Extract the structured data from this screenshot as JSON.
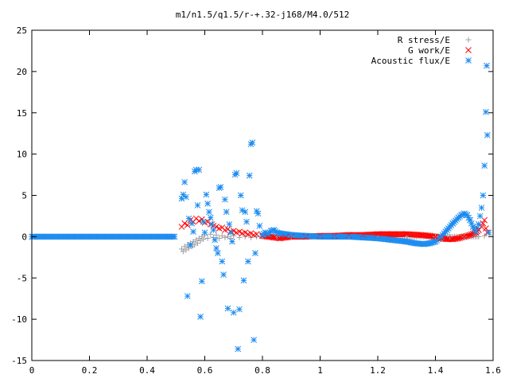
{
  "chart_data": {
    "type": "scatter",
    "title": "m1/n1.5/q1.5/r-+.32-j168/M4.0/512",
    "xlabel": "",
    "ylabel": "",
    "xlim": [
      0,
      1.6
    ],
    "ylim": [
      -15,
      25
    ],
    "x_ticks": [
      "0",
      "0.2",
      "0.4",
      "0.6",
      "0.8",
      "1",
      "1.2",
      "1.4",
      "1.6"
    ],
    "y_ticks": [
      "25",
      "20",
      "15",
      "10",
      "5",
      "0",
      "-5",
      "-10",
      "-15"
    ],
    "grid": false,
    "legend_position": "top-right",
    "series": [
      {
        "name": "R stress/E",
        "marker": "plus",
        "color": "#a0a0a4",
        "points": [
          [
            0.52,
            -1.5
          ],
          [
            0.525,
            -1.8
          ],
          [
            0.53,
            -1.2
          ],
          [
            0.535,
            -1.6
          ],
          [
            0.54,
            -1.0
          ],
          [
            0.545,
            -1.4
          ],
          [
            0.55,
            -0.8
          ],
          [
            0.555,
            -1.2
          ],
          [
            0.56,
            -0.6
          ],
          [
            0.565,
            -1.0
          ],
          [
            0.57,
            -0.4
          ],
          [
            0.575,
            -0.8
          ],
          [
            0.58,
            -0.2
          ],
          [
            0.585,
            -0.5
          ],
          [
            0.59,
            0.0
          ],
          [
            0.595,
            -0.3
          ],
          [
            0.6,
            0.2
          ],
          [
            0.61,
            -0.2
          ],
          [
            0.62,
            0.3
          ],
          [
            0.63,
            -0.1
          ],
          [
            0.64,
            0.2
          ],
          [
            0.65,
            -0.2
          ],
          [
            0.66,
            0.1
          ],
          [
            0.67,
            -0.1
          ],
          [
            0.68,
            0.0
          ],
          [
            0.69,
            -0.2
          ],
          [
            0.7,
            0.1
          ],
          [
            0.72,
            -0.1
          ],
          [
            0.74,
            0.0
          ],
          [
            0.76,
            -0.1
          ],
          [
            0.78,
            0.0
          ],
          [
            0.8,
            0.0
          ],
          [
            0.85,
            0.0
          ],
          [
            0.9,
            0.0
          ],
          [
            1.0,
            0.0
          ],
          [
            1.1,
            0.0
          ],
          [
            1.2,
            0.0
          ],
          [
            1.3,
            0.0
          ],
          [
            1.4,
            0.0
          ],
          [
            1.45,
            0.0
          ],
          [
            1.5,
            0.0
          ],
          [
            1.55,
            0.0
          ],
          [
            1.57,
            0.1
          ]
        ]
      },
      {
        "name": "G work/E",
        "marker": "cross",
        "color": "#ff0000",
        "points": [
          [
            0.52,
            1.2
          ],
          [
            0.53,
            1.6
          ],
          [
            0.54,
            1.4
          ],
          [
            0.55,
            2.0
          ],
          [
            0.56,
            1.8
          ],
          [
            0.57,
            2.2
          ],
          [
            0.58,
            1.9
          ],
          [
            0.59,
            2.1
          ],
          [
            0.6,
            1.7
          ],
          [
            0.61,
            1.8
          ],
          [
            0.62,
            1.5
          ],
          [
            0.63,
            1.3
          ],
          [
            0.64,
            1.2
          ],
          [
            0.65,
            1.0
          ],
          [
            0.66,
            1.1
          ],
          [
            0.67,
            0.8
          ],
          [
            0.68,
            0.9
          ],
          [
            0.69,
            0.6
          ],
          [
            0.7,
            0.7
          ],
          [
            0.71,
            0.5
          ],
          [
            0.72,
            0.6
          ],
          [
            0.73,
            0.4
          ],
          [
            0.74,
            0.5
          ],
          [
            0.75,
            0.3
          ],
          [
            0.76,
            0.4
          ],
          [
            0.77,
            0.2
          ],
          [
            0.78,
            0.3
          ],
          [
            0.8,
            0.1
          ],
          [
            0.82,
            0.0
          ],
          [
            0.84,
            -0.1
          ],
          [
            0.86,
            -0.2
          ],
          [
            0.88,
            -0.1
          ],
          [
            0.9,
            0.0
          ],
          [
            0.95,
            0.0
          ],
          [
            1.0,
            0.1
          ],
          [
            1.05,
            0.1
          ],
          [
            1.1,
            0.2
          ],
          [
            1.15,
            0.2
          ],
          [
            1.2,
            0.3
          ],
          [
            1.25,
            0.3
          ],
          [
            1.3,
            0.3
          ],
          [
            1.35,
            0.2
          ],
          [
            1.38,
            0.1
          ],
          [
            1.4,
            0.0
          ],
          [
            1.42,
            -0.2
          ],
          [
            1.44,
            -0.3
          ],
          [
            1.46,
            -0.3
          ],
          [
            1.48,
            -0.2
          ],
          [
            1.5,
            0.0
          ],
          [
            1.52,
            0.2
          ],
          [
            1.54,
            0.5
          ],
          [
            1.55,
            0.8
          ],
          [
            1.56,
            1.2
          ],
          [
            1.565,
            1.6
          ],
          [
            1.57,
            2.0
          ],
          [
            1.575,
            1.0
          ],
          [
            1.58,
            0.5
          ]
        ]
      },
      {
        "name": "Acoustic flux/E",
        "marker": "star",
        "color": "#1e8cf0",
        "points": [
          [
            0.52,
            4.6
          ],
          [
            0.525,
            5.1
          ],
          [
            0.53,
            6.6
          ],
          [
            0.535,
            4.8
          ],
          [
            0.54,
            -7.2
          ],
          [
            0.545,
            2.2
          ],
          [
            0.55,
            -1.0
          ],
          [
            0.555,
            1.6
          ],
          [
            0.56,
            0.6
          ],
          [
            0.565,
            7.9
          ],
          [
            0.57,
            8.1
          ],
          [
            0.575,
            3.8
          ],
          [
            0.58,
            8.1
          ],
          [
            0.585,
            -9.7
          ],
          [
            0.59,
            -5.4
          ],
          [
            0.595,
            1.8
          ],
          [
            0.6,
            0.5
          ],
          [
            0.605,
            5.1
          ],
          [
            0.61,
            4.0
          ],
          [
            0.615,
            3.0
          ],
          [
            0.62,
            2.3
          ],
          [
            0.625,
            1.5
          ],
          [
            0.63,
            0.8
          ],
          [
            0.635,
            -0.4
          ],
          [
            0.64,
            -1.4
          ],
          [
            0.645,
            -2.0
          ],
          [
            0.65,
            5.9
          ],
          [
            0.655,
            6.0
          ],
          [
            0.66,
            -3.0
          ],
          [
            0.665,
            -4.6
          ],
          [
            0.67,
            4.5
          ],
          [
            0.675,
            3.0
          ],
          [
            0.68,
            -8.7
          ],
          [
            0.685,
            1.5
          ],
          [
            0.69,
            0.5
          ],
          [
            0.695,
            -0.6
          ],
          [
            0.7,
            -9.2
          ],
          [
            0.705,
            7.5
          ],
          [
            0.71,
            7.7
          ],
          [
            0.715,
            -13.6
          ],
          [
            0.72,
            -8.8
          ],
          [
            0.725,
            5.0
          ],
          [
            0.73,
            3.2
          ],
          [
            0.735,
            -5.3
          ],
          [
            0.74,
            3.0
          ],
          [
            0.745,
            1.8
          ],
          [
            0.75,
            -3.0
          ],
          [
            0.755,
            7.4
          ],
          [
            0.76,
            11.2
          ],
          [
            0.765,
            11.4
          ],
          [
            0.77,
            -12.5
          ],
          [
            0.775,
            -2.0
          ],
          [
            0.78,
            3.1
          ],
          [
            0.785,
            2.8
          ],
          [
            0.79,
            1.3
          ],
          [
            0.8,
            0.2
          ],
          [
            0.81,
            0.5
          ],
          [
            0.82,
            0.3
          ],
          [
            0.83,
            0.7
          ],
          [
            0.84,
            0.8
          ],
          [
            0.85,
            0.5
          ],
          [
            0.86,
            0.4
          ],
          [
            0.88,
            0.3
          ],
          [
            0.9,
            0.2
          ],
          [
            0.95,
            0.1
          ],
          [
            1.0,
            0.0
          ],
          [
            1.05,
            0.0
          ],
          [
            1.1,
            0.0
          ],
          [
            1.15,
            -0.1
          ],
          [
            1.2,
            -0.2
          ],
          [
            1.25,
            -0.4
          ],
          [
            1.3,
            -0.6
          ],
          [
            1.33,
            -0.8
          ],
          [
            1.36,
            -0.9
          ],
          [
            1.38,
            -0.8
          ],
          [
            1.4,
            -0.6
          ],
          [
            1.42,
            0.0
          ],
          [
            1.44,
            0.8
          ],
          [
            1.46,
            1.6
          ],
          [
            1.48,
            2.3
          ],
          [
            1.49,
            2.6
          ],
          [
            1.5,
            2.8
          ],
          [
            1.51,
            2.6
          ],
          [
            1.52,
            2.0
          ],
          [
            1.53,
            1.2
          ],
          [
            1.54,
            0.6
          ],
          [
            1.55,
            1.5
          ],
          [
            1.555,
            2.5
          ],
          [
            1.56,
            3.5
          ],
          [
            1.565,
            5.0
          ],
          [
            1.57,
            8.6
          ],
          [
            1.575,
            15.1
          ],
          [
            1.578,
            20.7
          ],
          [
            1.58,
            12.3
          ],
          [
            1.585,
            0.5
          ]
        ]
      }
    ]
  }
}
